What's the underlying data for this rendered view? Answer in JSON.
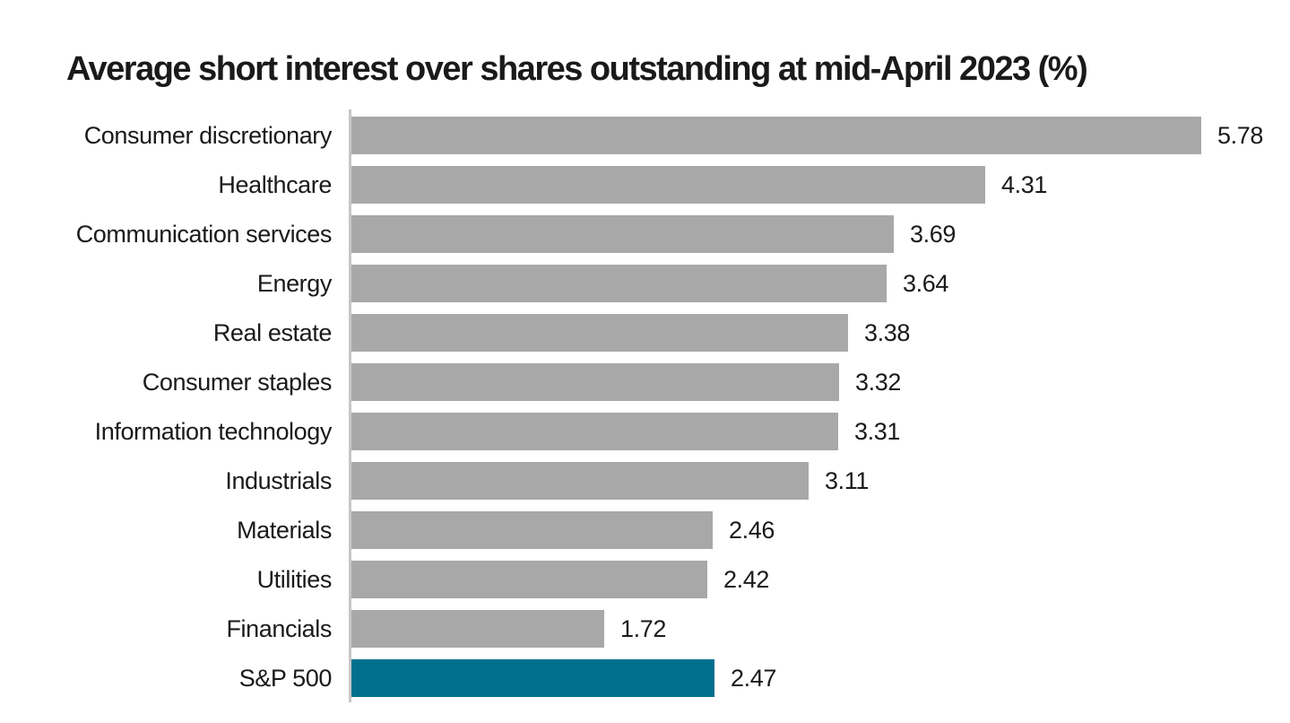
{
  "page": {
    "background": "#ffffff"
  },
  "chart_data": {
    "type": "bar",
    "orientation": "horizontal",
    "title": "Average short interest over shares outstanding at mid-April 2023 (%)",
    "categories": [
      "Consumer discretionary",
      "Healthcare",
      "Communication services",
      "Energy",
      "Real estate",
      "Consumer staples",
      "Information technology",
      "Industrials",
      "Materials",
      "Utilities",
      "Financials",
      "S&P 500"
    ],
    "values": [
      5.78,
      4.31,
      3.69,
      3.64,
      3.38,
      3.32,
      3.31,
      3.11,
      2.46,
      2.42,
      1.72,
      2.47
    ],
    "value_labels": [
      "5.78",
      "4.31",
      "3.69",
      "3.64",
      "3.38",
      "3.32",
      "3.31",
      "3.11",
      "2.46",
      "2.42",
      "1.72",
      "2.47"
    ],
    "highlight": {
      "category": "S&P 500",
      "index": 11,
      "color": "#006f8e"
    },
    "bar_color": "#a8a8a8",
    "axis_line_color": "#c6c6c6",
    "text_color": "#1a1a1a",
    "xlim": [
      0,
      6.4
    ],
    "xlabel": "",
    "ylabel": "",
    "grid": false,
    "legend": false,
    "data_labels": "end-of-bar"
  }
}
